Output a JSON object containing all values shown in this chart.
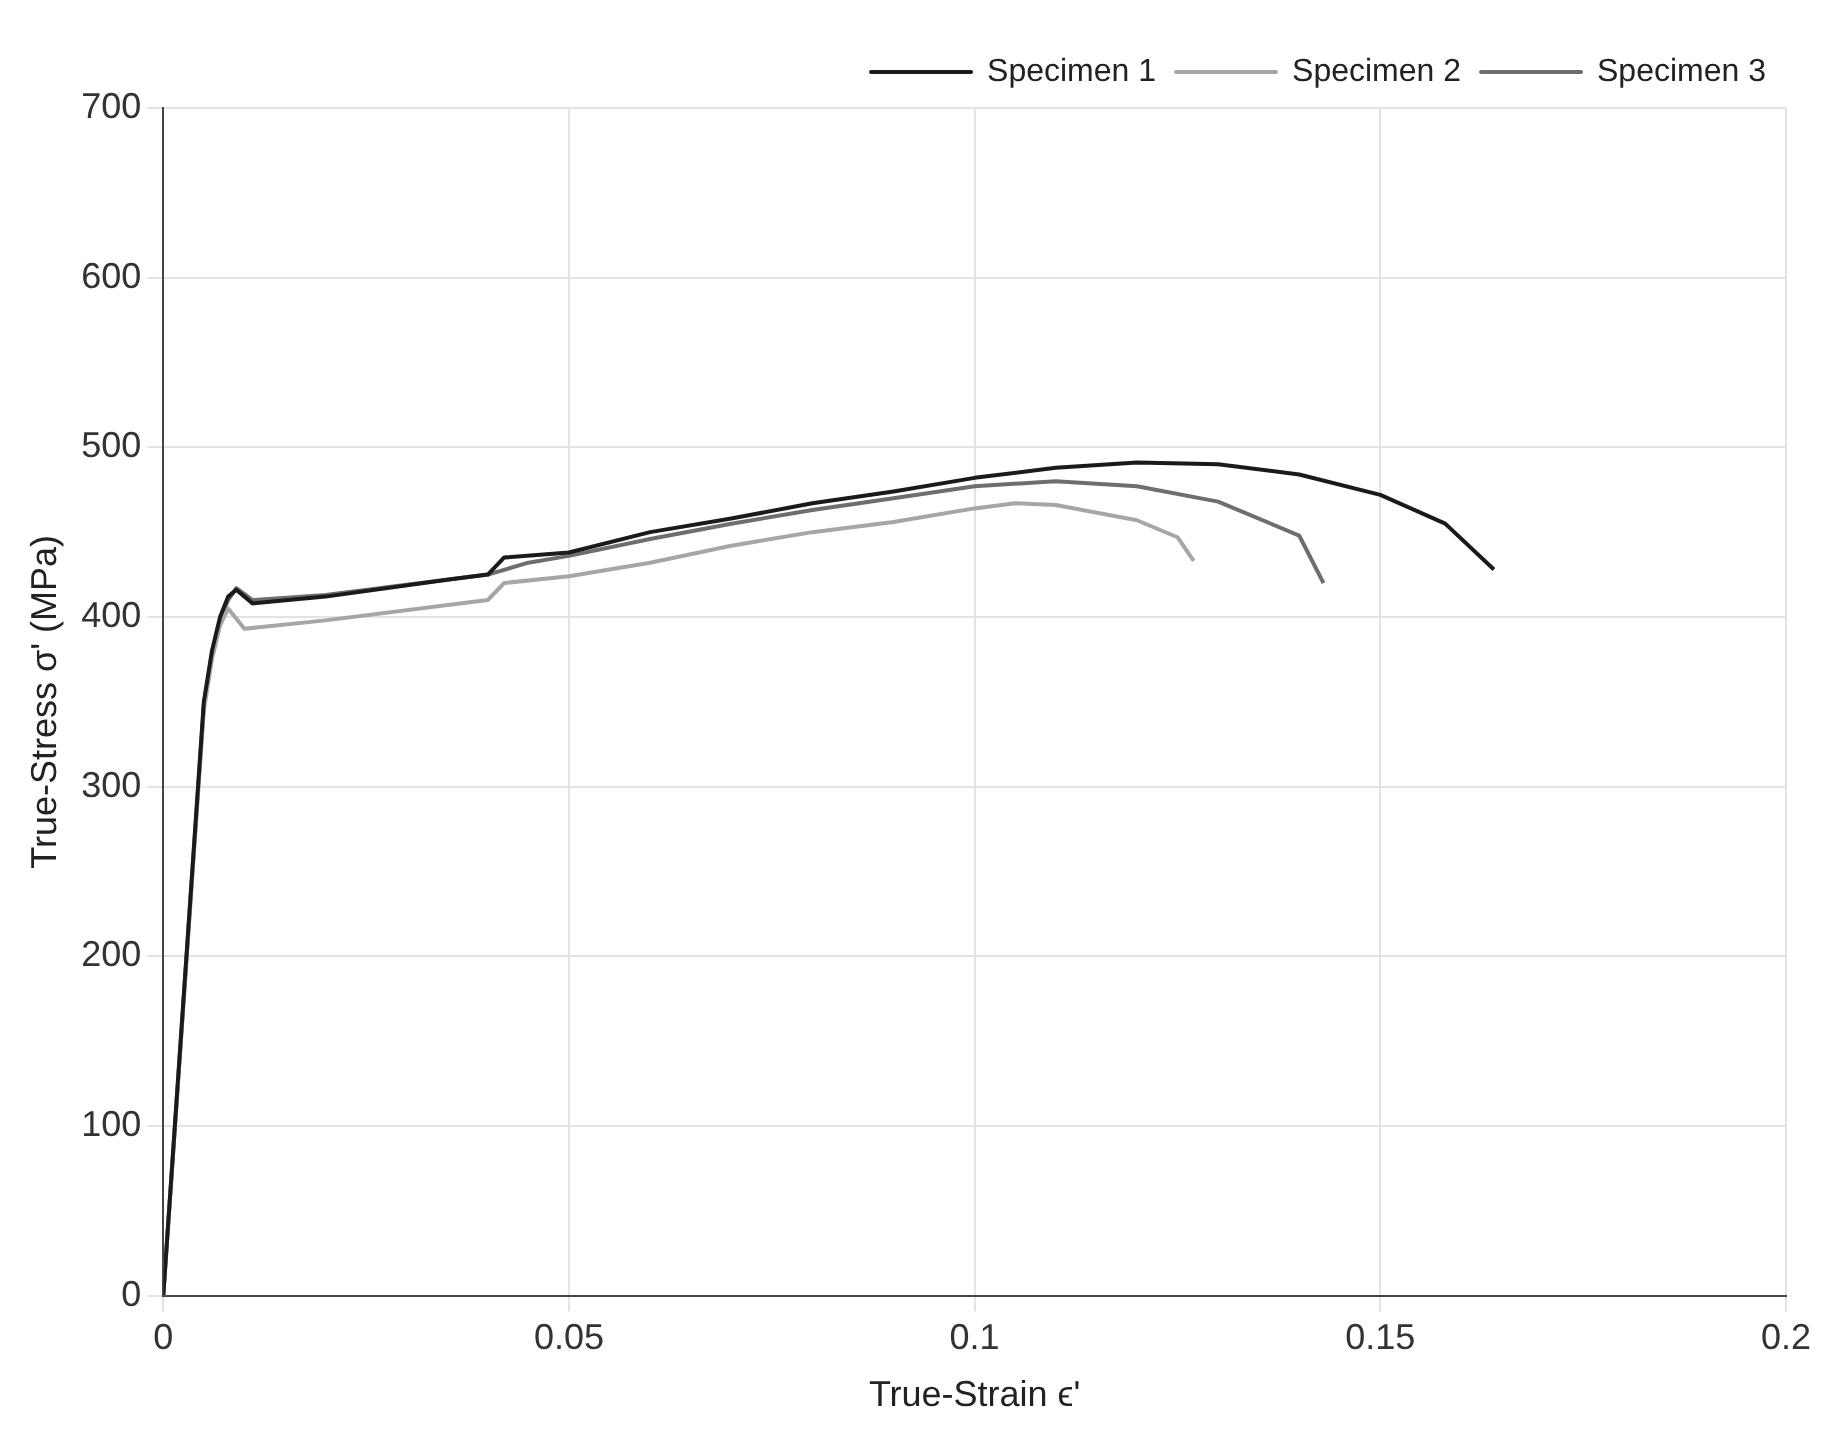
{
  "chart_data": {
    "type": "line",
    "xlabel": "True-Strain ϵ'",
    "ylabel": "True-Stress σ' (MPa)",
    "xlim": [
      0,
      0.2
    ],
    "xticks": [
      0,
      0.05,
      0.1,
      0.15,
      0.2
    ],
    "ylim": [
      0,
      700
    ],
    "yticks": [
      0,
      100,
      200,
      300,
      400,
      500,
      600,
      700
    ],
    "grid": true,
    "legend": "top right",
    "marker": "none",
    "line_style": "solid",
    "series": [
      {
        "name": "Specimen 1",
        "color": "#1a1a1a",
        "x": [
          0,
          0.005,
          0.006,
          0.007,
          0.008,
          0.009,
          0.011,
          0.02,
          0.035,
          0.04,
          0.042,
          0.05,
          0.06,
          0.07,
          0.08,
          0.09,
          0.1,
          0.11,
          0.12,
          0.13,
          0.14,
          0.15,
          0.158,
          0.164
        ],
        "values": [
          0,
          350,
          380,
          400,
          412,
          416,
          408,
          412,
          422,
          425,
          435,
          438,
          450,
          458,
          467,
          474,
          482,
          488,
          491,
          490,
          484,
          472,
          455,
          428
        ]
      },
      {
        "name": "Specimen 2",
        "color": "#a6a6a6",
        "x": [
          0,
          0.005,
          0.006,
          0.007,
          0.008,
          0.01,
          0.02,
          0.04,
          0.042,
          0.05,
          0.06,
          0.07,
          0.08,
          0.09,
          0.1,
          0.105,
          0.11,
          0.12,
          0.125,
          0.127
        ],
        "values": [
          0,
          345,
          375,
          395,
          405,
          393,
          398,
          410,
          420,
          424,
          432,
          442,
          450,
          456,
          464,
          467,
          466,
          457,
          447,
          433
        ]
      },
      {
        "name": "Specimen 3",
        "color": "#6e6e6e",
        "x": [
          0,
          0.005,
          0.006,
          0.007,
          0.008,
          0.009,
          0.011,
          0.02,
          0.04,
          0.045,
          0.05,
          0.06,
          0.07,
          0.08,
          0.09,
          0.1,
          0.11,
          0.12,
          0.13,
          0.14,
          0.143
        ],
        "values": [
          0,
          348,
          378,
          398,
          410,
          417,
          410,
          413,
          425,
          432,
          436,
          446,
          455,
          463,
          470,
          477,
          480,
          477,
          468,
          448,
          420
        ]
      }
    ]
  }
}
